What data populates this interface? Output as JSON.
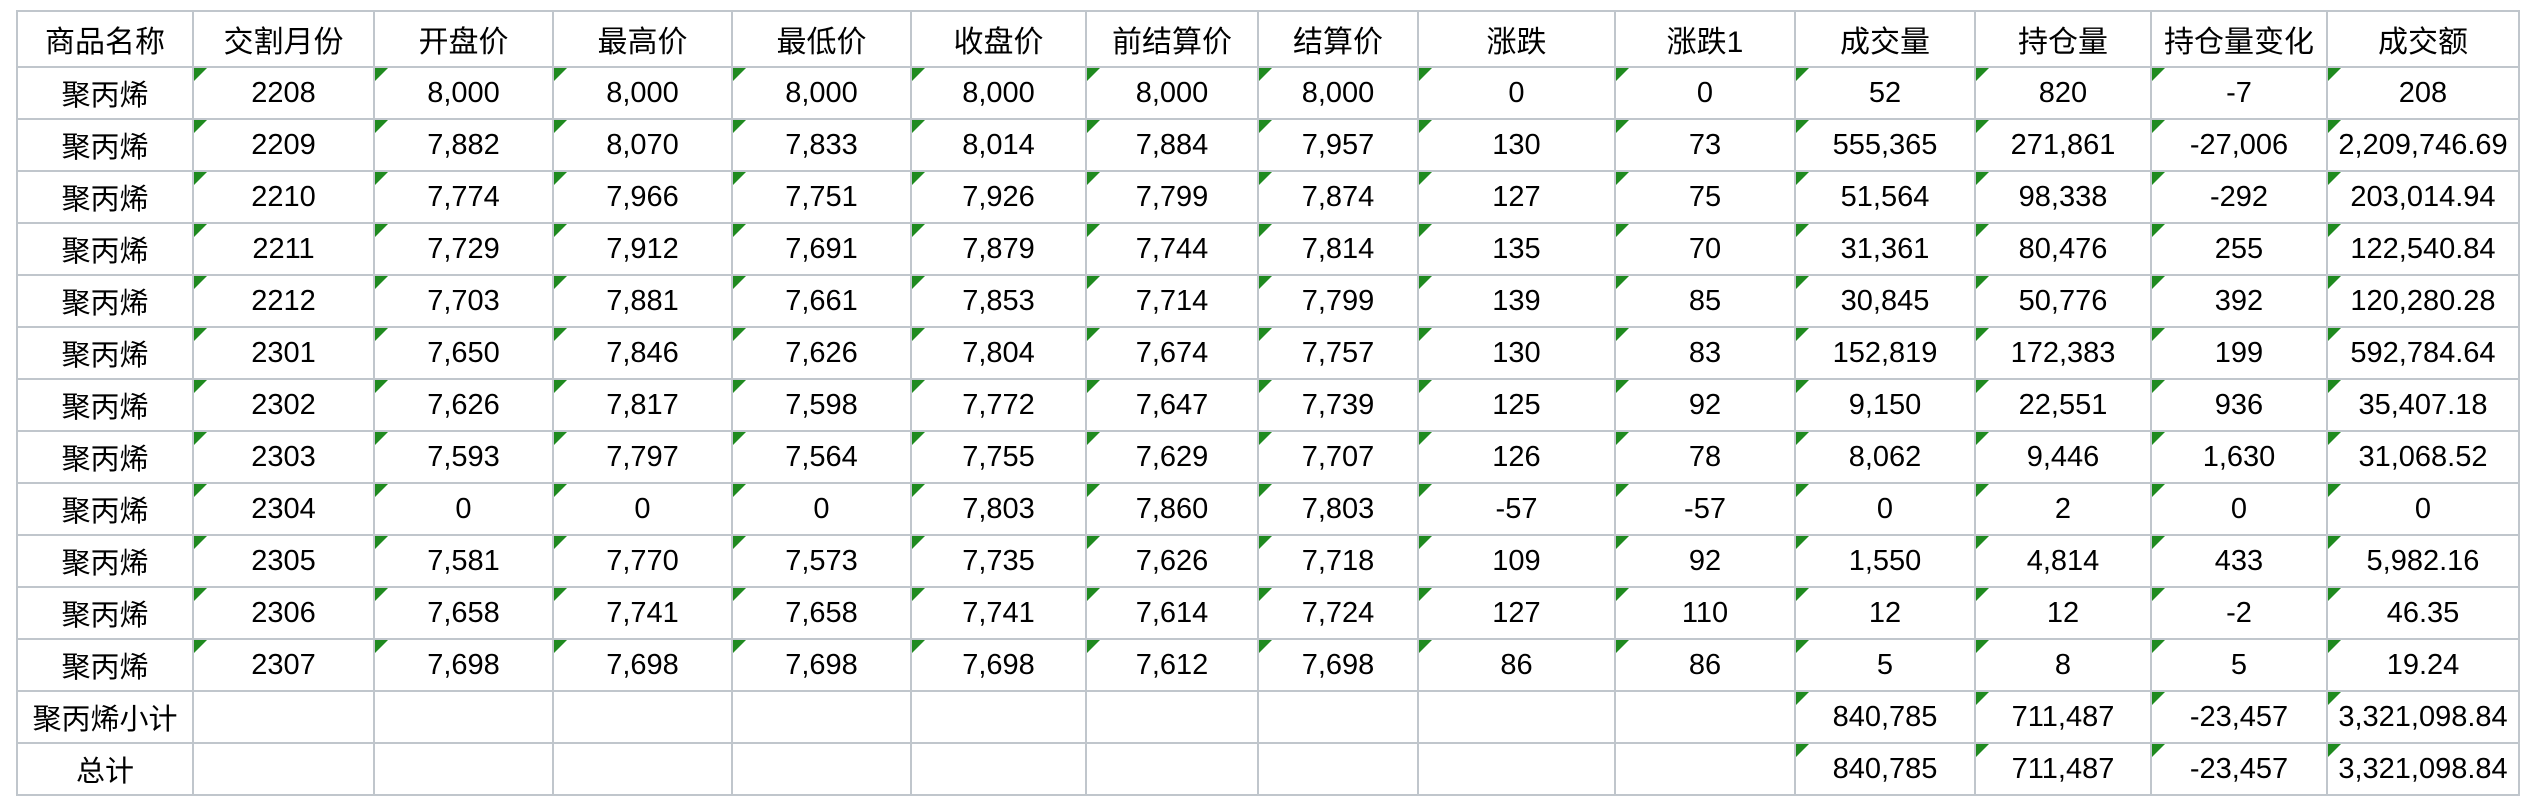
{
  "table": {
    "columns": [
      "商品名称",
      "交割月份",
      "开盘价",
      "最高价",
      "最低价",
      "收盘价",
      "前结算价",
      "结算价",
      "涨跌",
      "涨跌1",
      "成交量",
      "持仓量",
      "持仓量变化",
      "成交额"
    ],
    "rows": [
      {
        "type": "data",
        "cells": [
          "聚丙烯",
          "2208",
          "8,000",
          "8,000",
          "8,000",
          "8,000",
          "8,000",
          "8,000",
          "0",
          "0",
          "52",
          "820",
          "-7",
          "208"
        ]
      },
      {
        "type": "data",
        "cells": [
          "聚丙烯",
          "2209",
          "7,882",
          "8,070",
          "7,833",
          "8,014",
          "7,884",
          "7,957",
          "130",
          "73",
          "555,365",
          "271,861",
          "-27,006",
          "2,209,746.69"
        ]
      },
      {
        "type": "data",
        "cells": [
          "聚丙烯",
          "2210",
          "7,774",
          "7,966",
          "7,751",
          "7,926",
          "7,799",
          "7,874",
          "127",
          "75",
          "51,564",
          "98,338",
          "-292",
          "203,014.94"
        ]
      },
      {
        "type": "data",
        "cells": [
          "聚丙烯",
          "2211",
          "7,729",
          "7,912",
          "7,691",
          "7,879",
          "7,744",
          "7,814",
          "135",
          "70",
          "31,361",
          "80,476",
          "255",
          "122,540.84"
        ]
      },
      {
        "type": "data",
        "cells": [
          "聚丙烯",
          "2212",
          "7,703",
          "7,881",
          "7,661",
          "7,853",
          "7,714",
          "7,799",
          "139",
          "85",
          "30,845",
          "50,776",
          "392",
          "120,280.28"
        ]
      },
      {
        "type": "data",
        "cells": [
          "聚丙烯",
          "2301",
          "7,650",
          "7,846",
          "7,626",
          "7,804",
          "7,674",
          "7,757",
          "130",
          "83",
          "152,819",
          "172,383",
          "199",
          "592,784.64"
        ]
      },
      {
        "type": "data",
        "cells": [
          "聚丙烯",
          "2302",
          "7,626",
          "7,817",
          "7,598",
          "7,772",
          "7,647",
          "7,739",
          "125",
          "92",
          "9,150",
          "22,551",
          "936",
          "35,407.18"
        ]
      },
      {
        "type": "data",
        "cells": [
          "聚丙烯",
          "2303",
          "7,593",
          "7,797",
          "7,564",
          "7,755",
          "7,629",
          "7,707",
          "126",
          "78",
          "8,062",
          "9,446",
          "1,630",
          "31,068.52"
        ]
      },
      {
        "type": "data",
        "cells": [
          "聚丙烯",
          "2304",
          "0",
          "0",
          "0",
          "7,803",
          "7,860",
          "7,803",
          "-57",
          "-57",
          "0",
          "2",
          "0",
          "0"
        ]
      },
      {
        "type": "data",
        "cells": [
          "聚丙烯",
          "2305",
          "7,581",
          "7,770",
          "7,573",
          "7,735",
          "7,626",
          "7,718",
          "109",
          "92",
          "1,550",
          "4,814",
          "433",
          "5,982.16"
        ]
      },
      {
        "type": "data",
        "cells": [
          "聚丙烯",
          "2306",
          "7,658",
          "7,741",
          "7,658",
          "7,741",
          "7,614",
          "7,724",
          "127",
          "110",
          "12",
          "12",
          "-2",
          "46.35"
        ]
      },
      {
        "type": "data",
        "cells": [
          "聚丙烯",
          "2307",
          "7,698",
          "7,698",
          "7,698",
          "7,698",
          "7,612",
          "7,698",
          "86",
          "86",
          "5",
          "8",
          "5",
          "19.24"
        ]
      },
      {
        "type": "subtotal",
        "cells": [
          "聚丙烯小计",
          "",
          "",
          "",
          "",
          "",
          "",
          "",
          "",
          "",
          "840,785",
          "711,487",
          "-23,457",
          "3,321,098.84"
        ]
      },
      {
        "type": "total",
        "cells": [
          "总计",
          "",
          "",
          "",
          "",
          "",
          "",
          "",
          "",
          "",
          "840,785",
          "711,487",
          "-23,457",
          "3,321,098.84"
        ]
      }
    ]
  },
  "icons": {
    "flag": "number-stored-as-text-indicator"
  },
  "colors": {
    "flag_green": "#1f8a1f",
    "grid_border": "#c0c6cc",
    "text": "#000000",
    "background": "#ffffff"
  }
}
